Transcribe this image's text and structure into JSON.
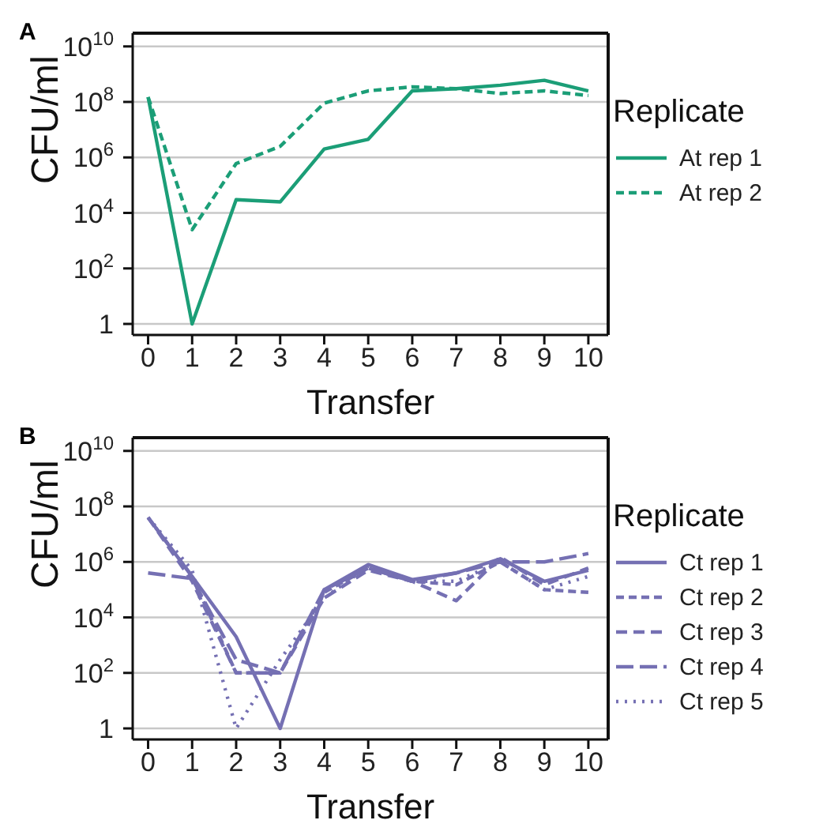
{
  "chart_data": [
    {
      "type": "line",
      "title": "A",
      "xlabel": "Transfer",
      "ylabel": "CFU/ml",
      "legend_title": "Replicate",
      "legend": "right",
      "log": "y",
      "grid": "y",
      "marker": "none",
      "x": [
        0,
        1,
        2,
        3,
        4,
        5,
        6,
        7,
        8,
        9,
        10
      ],
      "xlim": [
        -0.35,
        10.45
      ],
      "xticks": [
        0,
        1,
        2,
        3,
        4,
        5,
        6,
        7,
        8,
        9,
        10
      ],
      "ylim": [
        0.4,
        30000000000
      ],
      "yticks": [
        1,
        {
          "value": 100,
          "label": "10$^{2}$"
        },
        {
          "value": 10000,
          "label": "10$^{4}$"
        },
        {
          "value": 1000000,
          "label": "10$^{6}$"
        },
        {
          "value": 100000000,
          "label": "10$^{8}$"
        },
        {
          "value": 10000000000,
          "label": "10$^{10}$"
        }
      ],
      "series": [
        {
          "name": "At rep 1",
          "color": "#1b9e77",
          "line_style": "solid",
          "values": [
            150000000,
            1,
            30000,
            25000,
            2000000,
            4500000,
            250000000,
            300000000,
            400000000,
            600000000,
            250000000
          ]
        },
        {
          "name": "At rep 2",
          "color": "#1b9e77",
          "line_style": "dashed",
          "values": [
            150000000,
            2500,
            600000,
            2500000,
            90000000,
            250000000,
            350000000,
            300000000,
            200000000,
            250000000,
            170000000
          ]
        }
      ]
    },
    {
      "type": "line",
      "title": "B",
      "xlabel": "Transfer",
      "ylabel": "CFU/ml",
      "legend_title": "Replicate",
      "legend": "right",
      "log": "y",
      "grid": "y",
      "marker": "none",
      "x": [
        0,
        1,
        2,
        3,
        4,
        5,
        6,
        7,
        8,
        9,
        10
      ],
      "xlim": [
        -0.35,
        10.45
      ],
      "xticks": [
        0,
        1,
        2,
        3,
        4,
        5,
        6,
        7,
        8,
        9,
        10
      ],
      "ylim": [
        0.4,
        30000000000
      ],
      "yticks": [
        1,
        {
          "value": 100,
          "label": "10$^{2}$"
        },
        {
          "value": 10000,
          "label": "10$^{4}$"
        },
        {
          "value": 1000000,
          "label": "10$^{6}$"
        },
        {
          "value": 100000000,
          "label": "10$^{8}$"
        },
        {
          "value": 10000000000,
          "label": "10$^{10}$"
        }
      ],
      "series": [
        {
          "name": "Ct rep 1",
          "color": "#7570b3",
          "line_style": "solid",
          "values": [
            40000000,
            300000,
            2000,
            1,
            100000,
            800000,
            230000,
            400000,
            1300000,
            200000,
            500000
          ]
        },
        {
          "name": "Ct rep 2",
          "color": "#7570b3",
          "line_style": "dashed",
          "values": [
            40000000,
            300000,
            100,
            100,
            80000,
            600000,
            200000,
            150000,
            1000000,
            100000,
            80000
          ]
        },
        {
          "name": "Ct rep 3",
          "color": "#7570b3",
          "line_style": "dashed",
          "values": [
            40000000,
            200000,
            100,
            100,
            50000,
            500000,
            200000,
            40000,
            1500000,
            150000,
            600000
          ]
        },
        {
          "name": "Ct rep 4",
          "color": "#7570b3",
          "line_style": "dashed",
          "values": [
            400000,
            250000,
            300,
            100,
            100000,
            600000,
            200000,
            400000,
            1000000,
            1000000,
            2000000
          ]
        },
        {
          "name": "Ct rep 5",
          "color": "#7570b3",
          "line_style": "dotted",
          "values": [
            40000000,
            500000,
            1,
            300,
            50000,
            700000,
            200000,
            200000,
            1000000,
            100000,
            300000
          ]
        }
      ]
    }
  ]
}
